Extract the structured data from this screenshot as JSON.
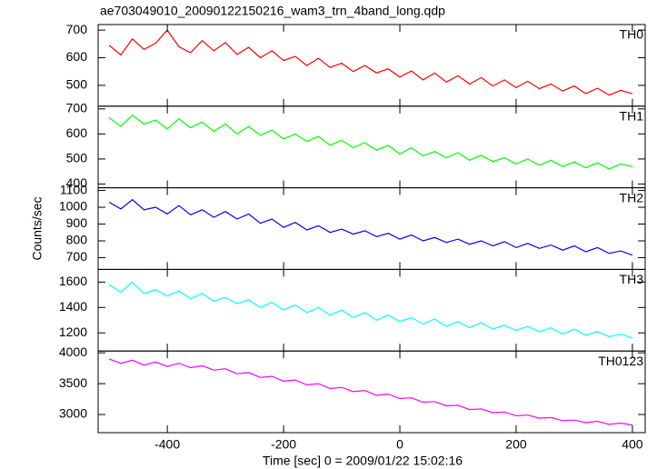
{
  "chart_data": [
    {
      "type": "line",
      "title": "ae703049010_20090122150216_wam3_trn_4band_long.qdp",
      "x": [
        -500,
        -480,
        -460,
        -440,
        -420,
        -400,
        -380,
        -360,
        -340,
        -320,
        -300,
        -280,
        -260,
        -240,
        -220,
        -200,
        -180,
        -160,
        -140,
        -120,
        -100,
        -80,
        -60,
        -40,
        -20,
        0,
        20,
        40,
        60,
        80,
        100,
        120,
        140,
        160,
        180,
        200,
        220,
        240,
        260,
        280,
        300,
        320,
        340,
        360,
        380,
        400
      ],
      "series": [
        {
          "name": "TH0",
          "color": "#ff0000",
          "values": [
            645,
            610,
            668,
            630,
            652,
            700,
            640,
            618,
            662,
            625,
            655,
            612,
            638,
            600,
            625,
            590,
            605,
            572,
            598,
            565,
            580,
            550,
            572,
            545,
            560,
            530,
            552,
            520,
            545,
            512,
            535,
            505,
            528,
            498,
            520,
            492,
            515,
            488,
            505,
            480,
            498,
            470,
            490,
            465,
            482,
            470
          ]
        }
      ],
      "xlim": [
        -519,
        422
      ],
      "ylim": [
        425,
        720
      ],
      "yticks": [
        500,
        600,
        700
      ]
    },
    {
      "type": "line",
      "x": [
        -500,
        -480,
        -460,
        -440,
        -420,
        -400,
        -380,
        -360,
        -340,
        -320,
        -300,
        -280,
        -260,
        -240,
        -220,
        -200,
        -180,
        -160,
        -140,
        -120,
        -100,
        -80,
        -60,
        -40,
        -20,
        0,
        20,
        40,
        60,
        80,
        100,
        120,
        140,
        160,
        180,
        200,
        220,
        240,
        260,
        280,
        300,
        320,
        340,
        360,
        380,
        400
      ],
      "series": [
        {
          "name": "TH1",
          "color": "#00ff00",
          "values": [
            665,
            630,
            675,
            640,
            655,
            620,
            660,
            625,
            648,
            610,
            640,
            600,
            630,
            595,
            615,
            580,
            600,
            570,
            590,
            555,
            575,
            545,
            565,
            535,
            555,
            520,
            545,
            512,
            530,
            505,
            525,
            495,
            515,
            490,
            505,
            480,
            500,
            475,
            495,
            470,
            488,
            465,
            485,
            460,
            480,
            470
          ]
        }
      ],
      "xlim": [
        -519,
        422
      ],
      "ylim": [
        385,
        711
      ],
      "yticks": [
        400,
        500,
        600,
        700
      ]
    },
    {
      "type": "line",
      "ylabel": "Counts/sec",
      "x": [
        -500,
        -480,
        -460,
        -440,
        -420,
        -400,
        -380,
        -360,
        -340,
        -320,
        -300,
        -280,
        -260,
        -240,
        -220,
        -200,
        -180,
        -160,
        -140,
        -120,
        -100,
        -80,
        -60,
        -40,
        -20,
        0,
        20,
        40,
        60,
        80,
        100,
        120,
        140,
        160,
        180,
        200,
        220,
        240,
        260,
        280,
        300,
        320,
        340,
        360,
        380,
        400
      ],
      "series": [
        {
          "name": "TH2",
          "color": "#0000ff",
          "values": [
            1030,
            990,
            1045,
            985,
            1000,
            960,
            1010,
            955,
            985,
            940,
            975,
            930,
            960,
            905,
            930,
            880,
            910,
            865,
            890,
            850,
            870,
            840,
            860,
            825,
            845,
            810,
            835,
            800,
            820,
            790,
            810,
            780,
            800,
            770,
            795,
            760,
            785,
            755,
            775,
            745,
            770,
            735,
            760,
            725,
            740,
            715
          ]
        }
      ],
      "xlim": [
        -519,
        422
      ],
      "ylim": [
        630,
        1116
      ],
      "yticks": [
        700,
        800,
        900,
        1000,
        1100
      ]
    },
    {
      "type": "line",
      "x": [
        -500,
        -480,
        -460,
        -440,
        -420,
        -400,
        -380,
        -360,
        -340,
        -320,
        -300,
        -280,
        -260,
        -240,
        -220,
        -200,
        -180,
        -160,
        -140,
        -120,
        -100,
        -80,
        -60,
        -40,
        -20,
        0,
        20,
        40,
        60,
        80,
        100,
        120,
        140,
        160,
        180,
        200,
        220,
        240,
        260,
        280,
        300,
        320,
        340,
        360,
        380,
        400
      ],
      "series": [
        {
          "name": "TH3",
          "color": "#00ffff",
          "values": [
            1580,
            1520,
            1600,
            1510,
            1540,
            1490,
            1530,
            1470,
            1510,
            1450,
            1480,
            1430,
            1460,
            1400,
            1440,
            1380,
            1420,
            1360,
            1400,
            1340,
            1380,
            1320,
            1360,
            1300,
            1340,
            1290,
            1320,
            1270,
            1310,
            1250,
            1290,
            1240,
            1280,
            1230,
            1260,
            1220,
            1250,
            1210,
            1240,
            1190,
            1230,
            1180,
            1210,
            1170,
            1190,
            1160
          ]
        }
      ],
      "xlim": [
        -519,
        422
      ],
      "ylim": [
        1057,
        1700
      ],
      "yticks": [
        1200,
        1400,
        1600
      ]
    },
    {
      "type": "line",
      "xlabel": "Time [sec] 0 = 2009/01/22 15:02:16",
      "x": [
        -500,
        -480,
        -460,
        -440,
        -420,
        -400,
        -380,
        -360,
        -340,
        -320,
        -300,
        -280,
        -260,
        -240,
        -220,
        -200,
        -180,
        -160,
        -140,
        -120,
        -100,
        -80,
        -60,
        -40,
        -20,
        0,
        20,
        40,
        60,
        80,
        100,
        120,
        140,
        160,
        180,
        200,
        220,
        240,
        260,
        280,
        300,
        320,
        340,
        360,
        380,
        400
      ],
      "series": [
        {
          "name": "TH0123",
          "color": "#ff00ff",
          "values": [
            3900,
            3830,
            3880,
            3800,
            3850,
            3780,
            3830,
            3760,
            3790,
            3720,
            3740,
            3660,
            3680,
            3600,
            3620,
            3540,
            3560,
            3480,
            3500,
            3420,
            3440,
            3370,
            3390,
            3310,
            3330,
            3260,
            3270,
            3200,
            3210,
            3140,
            3150,
            3080,
            3090,
            3030,
            3040,
            2980,
            2990,
            2940,
            2950,
            2900,
            2910,
            2870,
            2890,
            2840,
            2860,
            2830
          ]
        }
      ],
      "xlim": [
        -519,
        422
      ],
      "ylim": [
        2706,
        4029
      ],
      "yticks": [
        3000,
        3500,
        4000
      ],
      "xticks": [
        -400,
        -200,
        0,
        200,
        400
      ]
    }
  ]
}
